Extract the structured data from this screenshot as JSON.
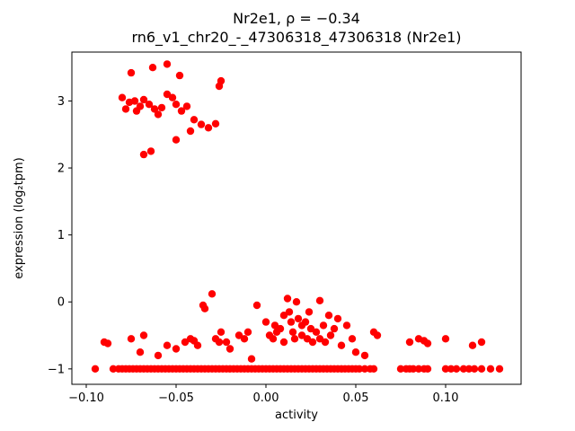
{
  "figure": {
    "background": "#ffffff"
  },
  "chart_data": {
    "type": "scatter",
    "title": "Nr2e1, ρ = −0.34",
    "subtitle": "rn6_v1_chr20_-_47306318_47306318 (Nr2e1)",
    "xlabel": "activity",
    "ylabel": "expression (log₂tpm)",
    "xlim": [
      -0.108,
      0.142
    ],
    "ylim": [
      -1.23,
      3.73
    ],
    "xticks": [
      -0.1,
      -0.05,
      0.0,
      0.05,
      0.1
    ],
    "xtick_labels": [
      "−0.10",
      "−0.05",
      "0.00",
      "0.05",
      "0.10"
    ],
    "yticks": [
      -1,
      0,
      1,
      2,
      3
    ],
    "ytick_labels": [
      "−1",
      "0",
      "1",
      "2",
      "3"
    ],
    "grid": false,
    "legend": false,
    "marker_color": "#ff0000",
    "marker_radius_px": 4.2,
    "points": [
      [
        -0.075,
        3.42
      ],
      [
        -0.063,
        3.5
      ],
      [
        -0.055,
        3.55
      ],
      [
        -0.048,
        3.38
      ],
      [
        -0.08,
        3.05
      ],
      [
        -0.078,
        2.88
      ],
      [
        -0.076,
        2.98
      ],
      [
        -0.073,
        3.0
      ],
      [
        -0.072,
        2.85
      ],
      [
        -0.07,
        2.92
      ],
      [
        -0.068,
        3.02
      ],
      [
        -0.065,
        2.95
      ],
      [
        -0.062,
        2.88
      ],
      [
        -0.06,
        2.8
      ],
      [
        -0.058,
        2.9
      ],
      [
        -0.055,
        3.1
      ],
      [
        -0.052,
        3.05
      ],
      [
        -0.05,
        2.95
      ],
      [
        -0.047,
        2.85
      ],
      [
        -0.044,
        2.92
      ],
      [
        -0.04,
        2.72
      ],
      [
        -0.036,
        2.65
      ],
      [
        -0.032,
        2.6
      ],
      [
        -0.028,
        2.66
      ],
      [
        -0.025,
        3.3
      ],
      [
        -0.026,
        3.22
      ],
      [
        -0.068,
        2.2
      ],
      [
        -0.064,
        2.25
      ],
      [
        -0.05,
        2.42
      ],
      [
        -0.042,
        2.55
      ],
      [
        -0.09,
        -0.6
      ],
      [
        -0.088,
        -0.62
      ],
      [
        -0.075,
        -0.55
      ],
      [
        -0.07,
        -0.75
      ],
      [
        -0.068,
        -0.5
      ],
      [
        -0.06,
        -0.8
      ],
      [
        -0.055,
        -0.65
      ],
      [
        -0.05,
        -0.7
      ],
      [
        -0.045,
        -0.6
      ],
      [
        -0.042,
        -0.55
      ],
      [
        -0.04,
        -0.58
      ],
      [
        -0.038,
        -0.65
      ],
      [
        -0.035,
        -0.05
      ],
      [
        -0.034,
        -0.1
      ],
      [
        -0.03,
        0.12
      ],
      [
        -0.028,
        -0.55
      ],
      [
        -0.026,
        -0.6
      ],
      [
        -0.025,
        -0.45
      ],
      [
        -0.022,
        -0.6
      ],
      [
        -0.02,
        -0.7
      ],
      [
        -0.015,
        -0.5
      ],
      [
        -0.012,
        -0.55
      ],
      [
        -0.01,
        -0.45
      ],
      [
        -0.008,
        -0.85
      ],
      [
        -0.005,
        -0.05
      ],
      [
        0.0,
        -0.3
      ],
      [
        0.002,
        -0.5
      ],
      [
        0.004,
        -0.55
      ],
      [
        0.005,
        -0.35
      ],
      [
        0.006,
        -0.45
      ],
      [
        0.008,
        -0.4
      ],
      [
        0.01,
        -0.2
      ],
      [
        0.01,
        -0.6
      ],
      [
        0.012,
        0.05
      ],
      [
        0.013,
        -0.15
      ],
      [
        0.014,
        -0.3
      ],
      [
        0.015,
        -0.45
      ],
      [
        0.016,
        -0.55
      ],
      [
        0.017,
        0.0
      ],
      [
        0.018,
        -0.25
      ],
      [
        0.02,
        -0.35
      ],
      [
        0.02,
        -0.5
      ],
      [
        0.022,
        -0.3
      ],
      [
        0.023,
        -0.55
      ],
      [
        0.024,
        -0.15
      ],
      [
        0.025,
        -0.4
      ],
      [
        0.026,
        -0.6
      ],
      [
        0.028,
        -0.45
      ],
      [
        0.03,
        0.02
      ],
      [
        0.03,
        -0.55
      ],
      [
        0.032,
        -0.35
      ],
      [
        0.033,
        -0.6
      ],
      [
        0.035,
        -0.2
      ],
      [
        0.036,
        -0.5
      ],
      [
        0.038,
        -0.4
      ],
      [
        0.04,
        -0.25
      ],
      [
        0.042,
        -0.65
      ],
      [
        0.045,
        -0.35
      ],
      [
        0.048,
        -0.55
      ],
      [
        0.05,
        -0.75
      ],
      [
        0.055,
        -0.8
      ],
      [
        0.06,
        -0.45
      ],
      [
        0.062,
        -0.5
      ],
      [
        0.08,
        -0.6
      ],
      [
        0.085,
        -0.55
      ],
      [
        0.088,
        -0.58
      ],
      [
        0.09,
        -0.62
      ],
      [
        0.1,
        -0.55
      ],
      [
        0.115,
        -0.65
      ],
      [
        0.12,
        -0.6
      ],
      [
        -0.095,
        -1
      ],
      [
        -0.085,
        -1
      ],
      [
        -0.082,
        -1
      ],
      [
        -0.08,
        -1
      ],
      [
        -0.078,
        -1
      ],
      [
        -0.076,
        -1
      ],
      [
        -0.074,
        -1
      ],
      [
        -0.072,
        -1
      ],
      [
        -0.07,
        -1
      ],
      [
        -0.068,
        -1
      ],
      [
        -0.066,
        -1
      ],
      [
        -0.064,
        -1
      ],
      [
        -0.062,
        -1
      ],
      [
        -0.06,
        -1
      ],
      [
        -0.058,
        -1
      ],
      [
        -0.056,
        -1
      ],
      [
        -0.054,
        -1
      ],
      [
        -0.052,
        -1
      ],
      [
        -0.05,
        -1
      ],
      [
        -0.048,
        -1
      ],
      [
        -0.046,
        -1
      ],
      [
        -0.044,
        -1
      ],
      [
        -0.042,
        -1
      ],
      [
        -0.04,
        -1
      ],
      [
        -0.038,
        -1
      ],
      [
        -0.036,
        -1
      ],
      [
        -0.034,
        -1
      ],
      [
        -0.032,
        -1
      ],
      [
        -0.03,
        -1
      ],
      [
        -0.028,
        -1
      ],
      [
        -0.026,
        -1
      ],
      [
        -0.024,
        -1
      ],
      [
        -0.022,
        -1
      ],
      [
        -0.02,
        -1
      ],
      [
        -0.018,
        -1
      ],
      [
        -0.016,
        -1
      ],
      [
        -0.014,
        -1
      ],
      [
        -0.012,
        -1
      ],
      [
        -0.01,
        -1
      ],
      [
        -0.008,
        -1
      ],
      [
        -0.006,
        -1
      ],
      [
        -0.004,
        -1
      ],
      [
        -0.002,
        -1
      ],
      [
        0.0,
        -1
      ],
      [
        0.002,
        -1
      ],
      [
        0.004,
        -1
      ],
      [
        0.006,
        -1
      ],
      [
        0.008,
        -1
      ],
      [
        0.01,
        -1
      ],
      [
        0.012,
        -1
      ],
      [
        0.014,
        -1
      ],
      [
        0.016,
        -1
      ],
      [
        0.018,
        -1
      ],
      [
        0.02,
        -1
      ],
      [
        0.022,
        -1
      ],
      [
        0.024,
        -1
      ],
      [
        0.026,
        -1
      ],
      [
        0.028,
        -1
      ],
      [
        0.03,
        -1
      ],
      [
        0.032,
        -1
      ],
      [
        0.034,
        -1
      ],
      [
        0.036,
        -1
      ],
      [
        0.038,
        -1
      ],
      [
        0.04,
        -1
      ],
      [
        0.042,
        -1
      ],
      [
        0.044,
        -1
      ],
      [
        0.046,
        -1
      ],
      [
        0.048,
        -1
      ],
      [
        0.05,
        -1
      ],
      [
        0.052,
        -1
      ],
      [
        0.055,
        -1
      ],
      [
        0.058,
        -1
      ],
      [
        0.06,
        -1
      ],
      [
        0.075,
        -1
      ],
      [
        0.078,
        -1
      ],
      [
        0.08,
        -1
      ],
      [
        0.082,
        -1
      ],
      [
        0.085,
        -1
      ],
      [
        0.088,
        -1
      ],
      [
        0.09,
        -1
      ],
      [
        0.1,
        -1
      ],
      [
        0.103,
        -1
      ],
      [
        0.106,
        -1
      ],
      [
        0.11,
        -1
      ],
      [
        0.113,
        -1
      ],
      [
        0.116,
        -1
      ],
      [
        0.12,
        -1
      ],
      [
        0.125,
        -1
      ],
      [
        0.13,
        -1
      ]
    ]
  }
}
